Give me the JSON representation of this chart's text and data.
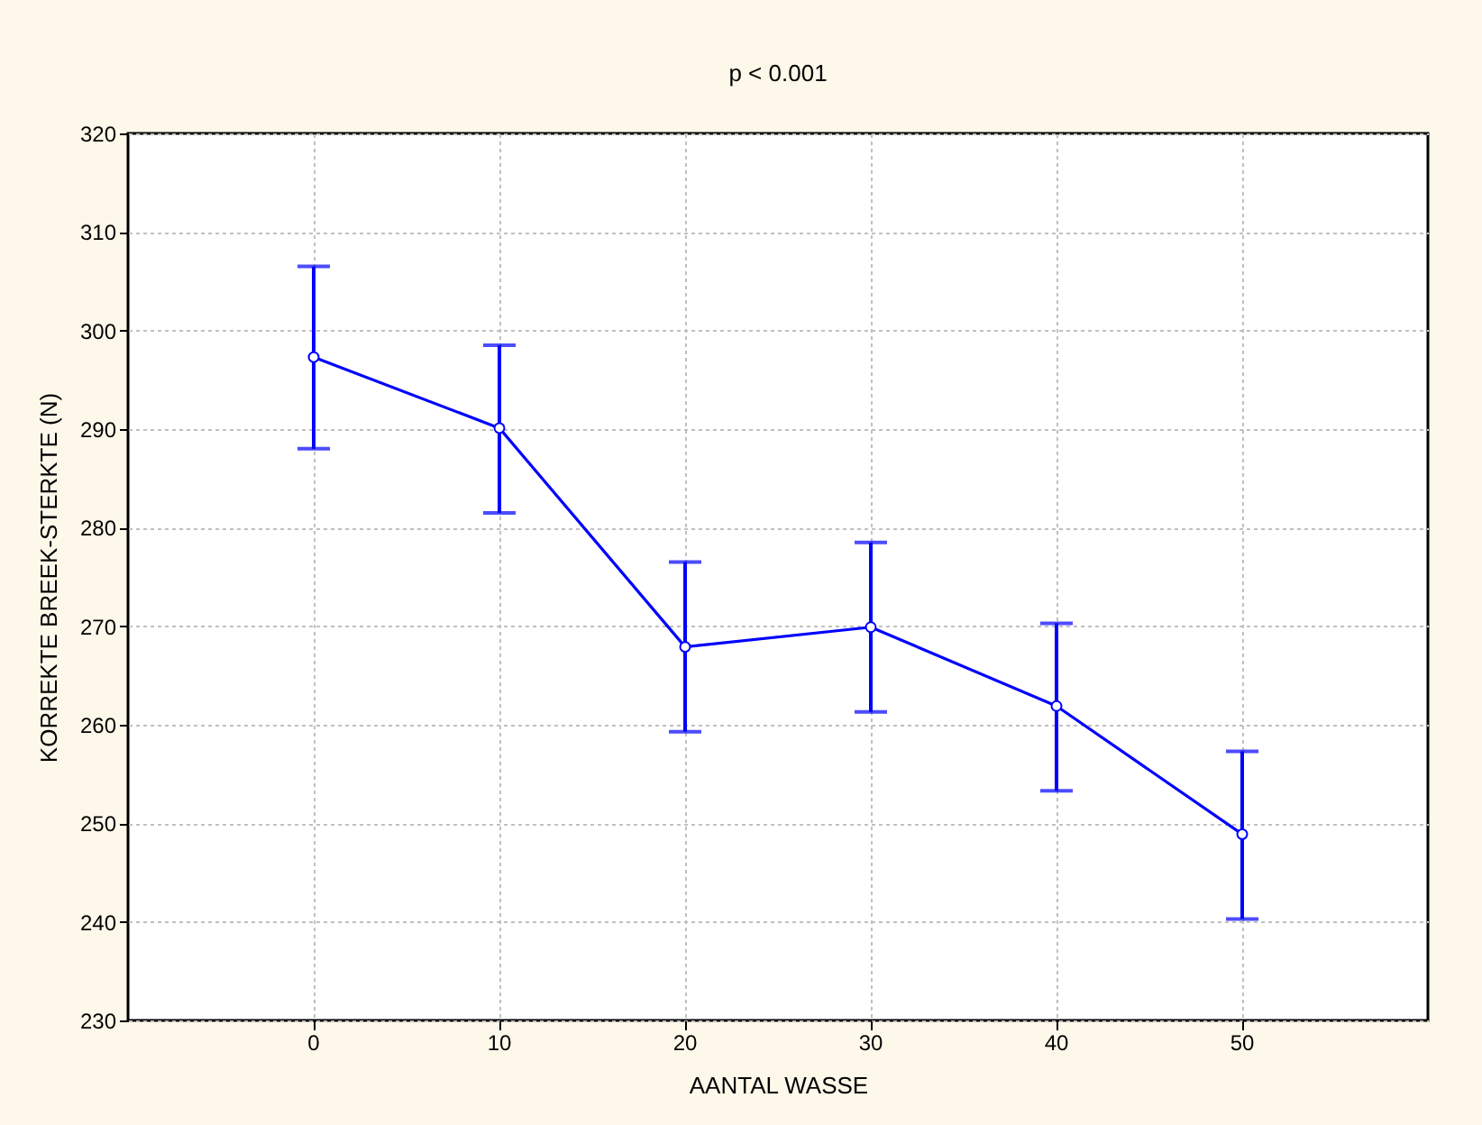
{
  "chart_data": {
    "type": "line",
    "title": "p < 0.001",
    "xlabel": "AANTAL WASSE",
    "ylabel": "KORREKTE BREEK-STERKTE (N)",
    "categories": [
      "0",
      "10",
      "20",
      "30",
      "40",
      "50"
    ],
    "series": [
      {
        "color": "#0000ff",
        "values": [
          297.3,
          290.1,
          267.9,
          269.9,
          261.9,
          248.9
        ],
        "errors": [
          [
            288,
            306.5
          ],
          [
            281.5,
            298.5
          ],
          [
            259.3,
            276.5
          ],
          [
            261.3,
            278.5
          ],
          [
            253.3,
            270.3
          ],
          [
            240.3,
            257.3
          ]
        ]
      }
    ],
    "ylim": [
      230,
      320
    ],
    "yticks": [
      230,
      240,
      250,
      260,
      270,
      280,
      290,
      300,
      310,
      320
    ],
    "grid": true,
    "marker": "circle",
    "line_style": "solid"
  }
}
